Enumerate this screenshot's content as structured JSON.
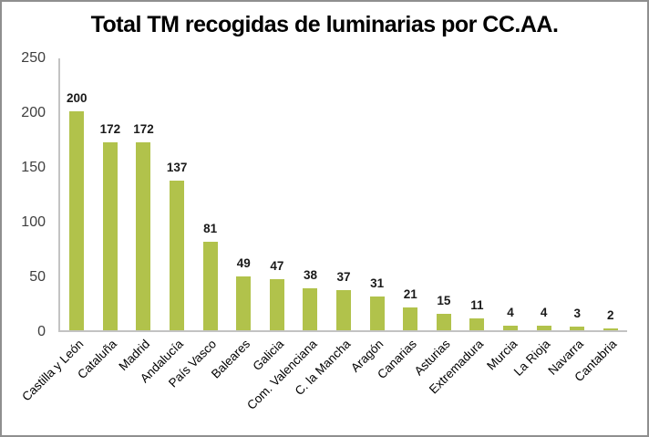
{
  "chart_data": {
    "type": "bar",
    "title": "Total TM recogidas de luminarias por CC.AA.",
    "categories": [
      "Castilla y León",
      "Cataluña",
      "Madrid",
      "Andalucía",
      "País Vasco",
      "Baleares",
      "Galicia",
      "Com. Valenciana",
      "C. la Mancha",
      "Aragón",
      "Canarias",
      "Asturias",
      "Extremadura",
      "Murcia",
      "La Rioja",
      "Navarra",
      "Cantabria"
    ],
    "values": [
      200,
      172,
      172,
      137,
      81,
      49,
      47,
      38,
      37,
      31,
      21,
      15,
      11,
      4,
      4,
      3,
      2
    ],
    "xlabel": "",
    "ylabel": "",
    "ylim": [
      0,
      250
    ],
    "yticks": [
      0,
      50,
      100,
      150,
      200,
      250
    ],
    "grid": false,
    "legend": false,
    "data_labels": true,
    "colors": {
      "bar": "#b1c24b",
      "title": "#000000",
      "value_label": "#1a1a1a",
      "tick_label": "#3f3f3f",
      "axis_line": "#c3c3c3",
      "frame_border": "#8f8f8f",
      "background": "#ffffff"
    }
  }
}
